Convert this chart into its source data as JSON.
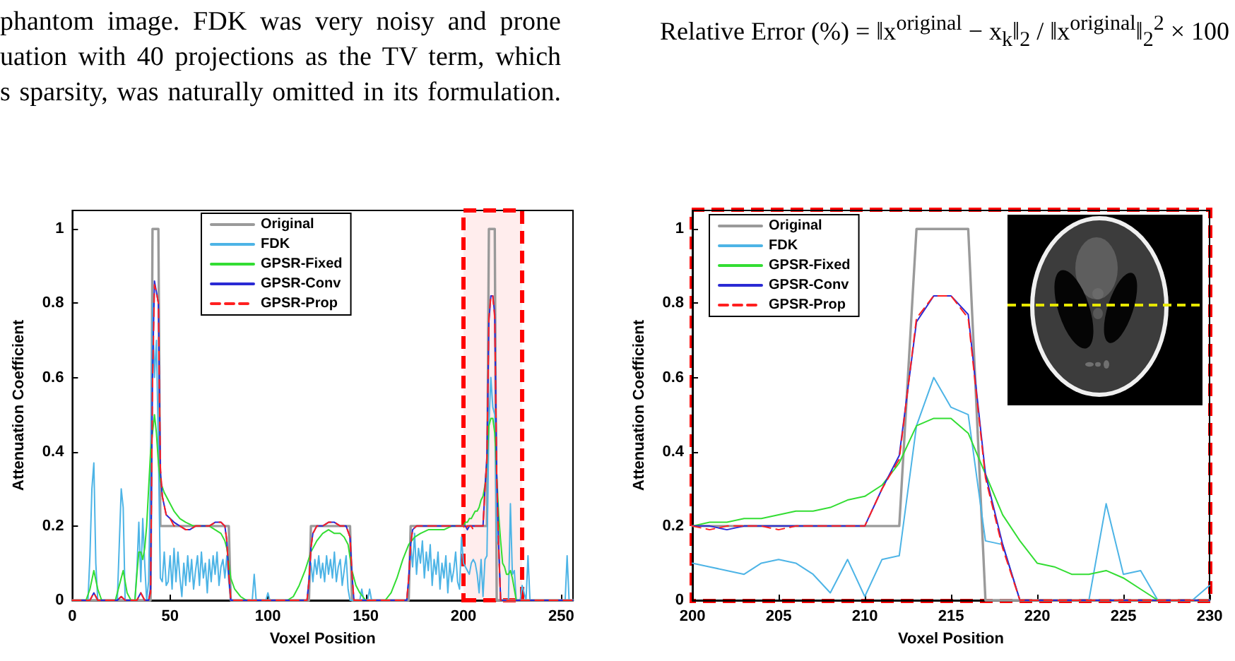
{
  "chart_data": [
    {
      "type": "line",
      "xlabel": "Voxel Position",
      "ylabel": "Attenuation Coefficient",
      "xlim": [
        0,
        256
      ],
      "ylim": [
        0,
        1.05
      ],
      "xticks": [
        0,
        50,
        100,
        150,
        200,
        250
      ],
      "yticks": [
        0,
        0.2,
        0.4,
        0.6,
        0.8,
        1
      ],
      "grid": false,
      "legend": "top",
      "marker": "none",
      "line_style": "solid",
      "annotations": [
        "phantom image. FDK was very noisy and prone",
        "uation with 40 projections as the TV term, which",
        "s sparsity, was naturally omitted in its formulation."
      ],
      "bands": [
        {
          "axis": "x",
          "from": 200,
          "to": 230,
          "color": "#ff0000"
        }
      ],
      "series": [
        {
          "name": "Original",
          "color": "#9a9a9a",
          "x": [
            0,
            40,
            41,
            44,
            45,
            80,
            81,
            121,
            122,
            142,
            143,
            172,
            173,
            212,
            213,
            216,
            217,
            256
          ],
          "values": [
            0,
            0,
            1,
            1,
            0.2,
            0.2,
            0,
            0,
            0.2,
            0.2,
            0,
            0,
            0.2,
            0.2,
            1,
            1,
            0,
            0
          ]
        },
        {
          "name": "FDK",
          "color": "#4db4e6",
          "x": [
            0,
            8,
            9,
            10,
            11,
            12,
            13,
            23,
            24,
            25,
            26,
            27,
            32,
            33,
            34,
            35,
            36,
            37,
            38,
            39,
            40,
            41,
            42,
            43,
            44,
            45,
            46,
            47,
            48,
            49,
            50,
            51,
            52,
            53,
            54,
            55,
            56,
            57,
            58,
            59,
            60,
            61,
            62,
            63,
            64,
            65,
            66,
            67,
            68,
            69,
            70,
            71,
            72,
            73,
            74,
            75,
            76,
            77,
            78,
            79,
            80,
            81,
            92,
            93,
            94,
            99,
            100,
            101,
            120,
            121,
            122,
            123,
            124,
            125,
            126,
            127,
            128,
            129,
            130,
            131,
            132,
            133,
            134,
            135,
            136,
            137,
            138,
            139,
            140,
            141,
            142,
            147,
            148,
            149,
            151,
            152,
            153,
            171,
            172,
            173,
            174,
            175,
            176,
            177,
            178,
            179,
            180,
            181,
            182,
            183,
            184,
            185,
            186,
            187,
            188,
            189,
            190,
            191,
            192,
            193,
            194,
            195,
            196,
            197,
            198,
            199,
            200,
            201,
            202,
            203,
            204,
            205,
            206,
            207,
            208,
            209,
            210,
            211,
            212,
            213,
            214,
            215,
            216,
            217,
            218,
            219,
            220,
            221,
            222,
            223,
            224,
            225,
            226,
            227,
            228,
            229,
            230,
            232,
            233,
            234,
            252,
            253,
            254,
            256
          ],
          "values": [
            0,
            0,
            0.12,
            0.3,
            0.37,
            0.1,
            0,
            0,
            0.15,
            0.3,
            0.25,
            0,
            0,
            0.08,
            0.21,
            0.05,
            0.22,
            0.1,
            0,
            0.05,
            0.35,
            0.8,
            0.6,
            0.7,
            0.41,
            0.06,
            0.05,
            0.13,
            0.04,
            0.05,
            0.12,
            0.03,
            0.14,
            0.05,
            0.13,
            0.06,
            0.01,
            0.1,
            0.04,
            0.12,
            0.05,
            0.11,
            0.03,
            0.08,
            0.12,
            0.04,
            0.13,
            0.06,
            0.1,
            0.02,
            0.11,
            0.05,
            0.12,
            0.07,
            0.13,
            0.04,
            0.09,
            0.11,
            0.06,
            0.12,
            0.05,
            0,
            0,
            0.07,
            0,
            0,
            0.02,
            0,
            0,
            0.06,
            0.1,
            0.05,
            0.11,
            0.07,
            0.12,
            0.06,
            0.1,
            0.05,
            0.12,
            0.07,
            0.11,
            0.06,
            0.13,
            0.05,
            0.09,
            0.11,
            0.04,
            0.08,
            0.12,
            0.03,
            0,
            0,
            0.03,
            0,
            0,
            0.03,
            0,
            0,
            0.05,
            0.15,
            0.09,
            0.18,
            0.07,
            0.14,
            0.1,
            0.16,
            0.06,
            0.13,
            0.08,
            0.15,
            0.04,
            0.11,
            0.07,
            0.13,
            0.03,
            0.1,
            0.06,
            0.12,
            0.02,
            0.1,
            0.05,
            0.08,
            0.13,
            0.05,
            0.03,
            0.17,
            0.1,
            0.09,
            0.08,
            0.07,
            0.1,
            0.11,
            0.1,
            0.07,
            0.02,
            0.11,
            0.01,
            0.11,
            0.12,
            0.47,
            0.6,
            0.52,
            0.5,
            0.16,
            0.15,
            0,
            0,
            0,
            0,
            0,
            0.26,
            0.07,
            0.08,
            0,
            0,
            0,
            0.04,
            0,
            0.12,
            0,
            0,
            0.12,
            0,
            0
          ]
        },
        {
          "name": "GPSR-Fixed",
          "color": "#33dd33",
          "x": [
            0,
            7,
            9,
            11,
            13,
            15,
            22,
            24,
            26,
            28,
            30,
            32,
            33,
            34,
            35,
            36,
            37,
            38,
            39,
            40,
            42,
            43,
            44,
            45,
            47,
            49,
            52,
            55,
            58,
            62,
            66,
            70,
            73,
            76,
            78,
            79,
            80,
            81,
            83,
            86,
            89,
            110,
            113,
            116,
            119,
            122,
            125,
            128,
            131,
            134,
            137,
            139,
            141,
            143,
            145,
            147,
            150,
            160,
            163,
            166,
            169,
            172,
            175,
            178,
            182,
            186,
            190,
            194,
            197,
            200,
            201,
            202,
            203,
            204,
            205,
            206,
            207,
            208,
            209,
            210,
            211,
            212,
            213,
            214,
            215,
            216,
            217,
            218,
            219,
            220,
            221,
            222,
            223,
            224,
            225,
            226,
            227,
            256
          ],
          "values": [
            0,
            0,
            0.03,
            0.08,
            0.03,
            0,
            0,
            0.04,
            0.08,
            0.02,
            0,
            0,
            0.07,
            0.13,
            0.13,
            0.11,
            0.14,
            0.2,
            0.3,
            0.4,
            0.5,
            0.45,
            0.37,
            0.32,
            0.29,
            0.27,
            0.24,
            0.22,
            0.21,
            0.2,
            0.2,
            0.2,
            0.19,
            0.18,
            0.16,
            0.14,
            0.1,
            0.06,
            0.03,
            0.01,
            0,
            0,
            0.01,
            0.04,
            0.08,
            0.13,
            0.16,
            0.18,
            0.19,
            0.18,
            0.18,
            0.17,
            0.15,
            0.08,
            0.04,
            0.02,
            0,
            0,
            0.02,
            0.06,
            0.11,
            0.15,
            0.17,
            0.18,
            0.19,
            0.19,
            0.19,
            0.2,
            0.2,
            0.2,
            0.21,
            0.21,
            0.22,
            0.22,
            0.23,
            0.24,
            0.24,
            0.25,
            0.27,
            0.28,
            0.31,
            0.37,
            0.47,
            0.49,
            0.49,
            0.45,
            0.34,
            0.23,
            0.16,
            0.1,
            0.09,
            0.07,
            0.07,
            0.08,
            0.06,
            0.03,
            0,
            0
          ]
        },
        {
          "name": "GPSR-Conv",
          "color": "#2a2ad4",
          "x": [
            0,
            9,
            11,
            13,
            23,
            25,
            27,
            33,
            35,
            37,
            39,
            40,
            41,
            42,
            43,
            44,
            45,
            46,
            48,
            50,
            52,
            55,
            58,
            60,
            63,
            67,
            70,
            73,
            76,
            78,
            79,
            80,
            81,
            120,
            121,
            122,
            123,
            125,
            128,
            131,
            134,
            137,
            140,
            142,
            143,
            144,
            171,
            172,
            173,
            174,
            176,
            180,
            185,
            190,
            195,
            200,
            201,
            202,
            203,
            204,
            205,
            206,
            207,
            208,
            209,
            210,
            211,
            212,
            213,
            214,
            215,
            216,
            217,
            218,
            219,
            256
          ],
          "values": [
            0,
            0,
            0.02,
            0,
            0,
            0.01,
            0,
            0,
            0.02,
            0,
            0,
            0.03,
            0.6,
            0.86,
            0.83,
            0.8,
            0.35,
            0.28,
            0.23,
            0.22,
            0.21,
            0.2,
            0.19,
            0.19,
            0.2,
            0.2,
            0.2,
            0.21,
            0.21,
            0.2,
            0.16,
            0.07,
            0,
            0,
            0.05,
            0.14,
            0.18,
            0.2,
            0.2,
            0.21,
            0.21,
            0.2,
            0.2,
            0.17,
            0.07,
            0,
            0,
            0.06,
            0.15,
            0.19,
            0.2,
            0.2,
            0.2,
            0.2,
            0.2,
            0.2,
            0.2,
            0.19,
            0.2,
            0.2,
            0.2,
            0.2,
            0.2,
            0.2,
            0.2,
            0.2,
            0.3,
            0.39,
            0.75,
            0.82,
            0.82,
            0.77,
            0.34,
            0.15,
            0,
            0
          ]
        },
        {
          "name": "GPSR-Prop",
          "color": "#ff2020",
          "line_style": "dashed",
          "x": [
            0,
            9,
            11,
            13,
            23,
            25,
            27,
            33,
            35,
            37,
            39,
            40,
            41,
            42,
            43,
            44,
            45,
            46,
            48,
            50,
            52,
            55,
            58,
            60,
            63,
            67,
            70,
            73,
            76,
            78,
            79,
            80,
            81,
            120,
            121,
            122,
            123,
            125,
            128,
            131,
            134,
            137,
            140,
            142,
            143,
            144,
            171,
            172,
            173,
            174,
            176,
            180,
            185,
            190,
            195,
            200,
            201,
            202,
            203,
            204,
            205,
            206,
            207,
            208,
            209,
            210,
            211,
            212,
            213,
            214,
            215,
            216,
            217,
            218,
            219,
            256
          ],
          "values": [
            0,
            0,
            0.02,
            0,
            0,
            0.01,
            0,
            0,
            0.02,
            0,
            0,
            0.02,
            0.58,
            0.85,
            0.83,
            0.8,
            0.36,
            0.28,
            0.23,
            0.22,
            0.2,
            0.2,
            0.19,
            0.19,
            0.2,
            0.2,
            0.2,
            0.21,
            0.21,
            0.2,
            0.16,
            0.07,
            0,
            0,
            0.05,
            0.14,
            0.18,
            0.2,
            0.2,
            0.21,
            0.21,
            0.2,
            0.2,
            0.17,
            0.07,
            0,
            0,
            0.06,
            0.15,
            0.19,
            0.2,
            0.2,
            0.2,
            0.2,
            0.2,
            0.2,
            0.19,
            0.2,
            0.2,
            0.2,
            0.19,
            0.2,
            0.2,
            0.2,
            0.2,
            0.2,
            0.3,
            0.38,
            0.76,
            0.82,
            0.82,
            0.76,
            0.33,
            0.14,
            0,
            0
          ]
        }
      ]
    },
    {
      "type": "line",
      "xlabel": "Voxel Position",
      "ylabel": "Attenuation Coefficient",
      "xlim": [
        200,
        230
      ],
      "ylim": [
        0,
        1.05
      ],
      "xticks": [
        200,
        205,
        210,
        215,
        220,
        225,
        230
      ],
      "yticks": [
        0,
        0.2,
        0.4,
        0.6,
        0.8,
        1
      ],
      "grid": false,
      "legend": "top left",
      "marker": "none",
      "line_style": "solid",
      "annotations": [
        "Relative Error (%) = ‖x$^{original}$ − x$_{k}$‖$_{2}$ / ‖x$^{original}$‖$_{2}$$^{2}$ × 100"
      ],
      "x": [
        200,
        201,
        202,
        203,
        204,
        205,
        206,
        207,
        208,
        209,
        210,
        211,
        212,
        213,
        214,
        215,
        216,
        217,
        218,
        219,
        220,
        221,
        222,
        223,
        224,
        225,
        226,
        227,
        228,
        229,
        230
      ],
      "series": [
        {
          "name": "Original",
          "color": "#9a9a9a",
          "values": [
            0.2,
            0.2,
            0.2,
            0.2,
            0.2,
            0.2,
            0.2,
            0.2,
            0.2,
            0.2,
            0.2,
            0.2,
            0.2,
            1,
            1,
            1,
            1,
            0,
            0,
            0,
            0,
            0,
            0,
            0,
            0,
            0,
            0,
            0,
            0,
            0,
            0
          ]
        },
        {
          "name": "FDK",
          "color": "#4db4e6",
          "values": [
            0.1,
            0.09,
            0.08,
            0.07,
            0.1,
            0.11,
            0.1,
            0.07,
            0.02,
            0.11,
            0.01,
            0.11,
            0.12,
            0.47,
            0.6,
            0.52,
            0.5,
            0.16,
            0.15,
            0,
            0,
            0,
            0,
            0,
            0.26,
            0.07,
            0.08,
            0,
            0,
            0,
            0.04
          ]
        },
        {
          "name": "GPSR-Fixed",
          "color": "#33dd33",
          "values": [
            0.2,
            0.21,
            0.21,
            0.22,
            0.22,
            0.23,
            0.24,
            0.24,
            0.25,
            0.27,
            0.28,
            0.31,
            0.37,
            0.47,
            0.49,
            0.49,
            0.45,
            0.34,
            0.23,
            0.16,
            0.1,
            0.09,
            0.07,
            0.07,
            0.08,
            0.06,
            0.03,
            0,
            0,
            null,
            null
          ]
        },
        {
          "name": "GPSR-Conv",
          "color": "#2a2ad4",
          "values": [
            0.2,
            0.2,
            0.19,
            0.2,
            0.2,
            0.2,
            0.2,
            0.2,
            0.2,
            0.2,
            0.2,
            0.3,
            0.39,
            0.75,
            0.82,
            0.82,
            0.77,
            0.34,
            0.15,
            0,
            0,
            0,
            0,
            0,
            0,
            0,
            0,
            0,
            0,
            0,
            0
          ]
        },
        {
          "name": "GPSR-Prop",
          "color": "#ff2020",
          "line_style": "dashed",
          "values": [
            0.2,
            0.19,
            0.2,
            0.2,
            0.2,
            0.19,
            0.2,
            0.2,
            0.2,
            0.2,
            0.2,
            0.3,
            0.38,
            0.76,
            0.82,
            0.82,
            0.76,
            0.33,
            0.14,
            0,
            0,
            0,
            0,
            0,
            0,
            0,
            0,
            0,
            0,
            0,
            0
          ]
        }
      ]
    }
  ]
}
